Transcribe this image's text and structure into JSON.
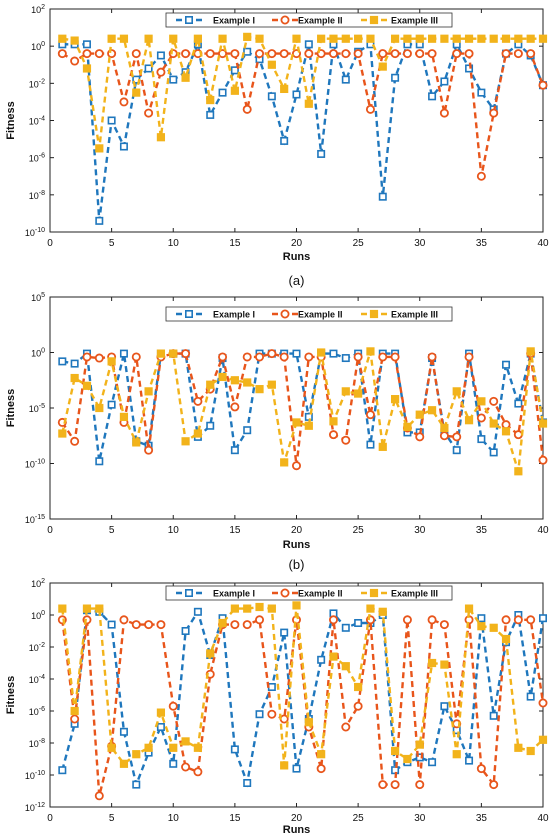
{
  "colors": {
    "series": [
      "#1f77bd",
      "#e8551b",
      "#f2b31b"
    ]
  },
  "chart_data": [
    {
      "type": "line",
      "caption": "(a)",
      "xlabel": "Runs",
      "ylabel": "Fitness",
      "y_scale": "log",
      "xlim": [
        0,
        40
      ],
      "ylim_exp": [
        -10,
        2
      ],
      "xticks": [
        0,
        5,
        10,
        15,
        20,
        25,
        30,
        35,
        40
      ],
      "yticks_exp": [
        -10,
        -8,
        -6,
        -4,
        -2,
        0,
        2
      ],
      "legend_position": "top",
      "x": [
        1,
        2,
        3,
        4,
        5,
        6,
        7,
        8,
        9,
        10,
        11,
        12,
        13,
        14,
        15,
        16,
        17,
        18,
        19,
        20,
        21,
        22,
        23,
        24,
        25,
        26,
        27,
        28,
        29,
        30,
        31,
        32,
        33,
        34,
        35,
        36,
        37,
        38,
        39,
        40
      ],
      "series": [
        {
          "name": "Example I",
          "marker": "square",
          "log10_values": [
            0.1,
            0.1,
            0.1,
            -9.4,
            -4,
            -5.4,
            -1.8,
            -1.2,
            -0.5,
            -1.8,
            -1.4,
            0.1,
            -3.7,
            -2.5,
            -1.3,
            -0.3,
            -0.7,
            -2.7,
            -5.1,
            -2.6,
            0.1,
            -5.8,
            0.1,
            -1.8,
            -0.3,
            0.1,
            -8.1,
            -1.7,
            0.1,
            0.1,
            -2.7,
            -1.9,
            0.1,
            -1.2,
            -2.5,
            -3.4,
            -0.4,
            0.1,
            -0.5,
            -2.1
          ]
        },
        {
          "name": "Example II",
          "marker": "circle",
          "log10_values": [
            -0.4,
            -0.8,
            -0.4,
            -0.4,
            -0.4,
            -3,
            -0.4,
            -3.6,
            -1.4,
            -0.4,
            -0.4,
            -0.4,
            -0.4,
            -0.4,
            -0.4,
            -3.4,
            -0.4,
            -0.4,
            -0.4,
            -0.4,
            -0.4,
            -0.4,
            -0.4,
            -0.4,
            -0.4,
            -3.4,
            -0.4,
            -0.4,
            -0.4,
            -0.4,
            -0.4,
            -3.6,
            -0.4,
            -0.4,
            -7,
            -3.6,
            -0.4,
            -0.4,
            -0.4,
            -2.1
          ]
        },
        {
          "name": "Example III",
          "marker": "filled-square",
          "log10_values": [
            0.4,
            0.3,
            -1.2,
            -5.5,
            0.4,
            0.4,
            -2.5,
            0.4,
            -4.9,
            0.4,
            -1.7,
            0.4,
            -2.9,
            0.4,
            -2.4,
            0.5,
            0.4,
            -1,
            -2.3,
            0.4,
            -3.1,
            0.4,
            0.4,
            0.4,
            0.4,
            0.4,
            -1.1,
            0.4,
            0.4,
            0.4,
            0.4,
            0.4,
            0.4,
            0.4,
            0.4,
            0.4,
            0.4,
            0.4,
            0.4,
            0.4
          ]
        }
      ]
    },
    {
      "type": "line",
      "caption": "(b)",
      "xlabel": "Runs",
      "ylabel": "Fitness",
      "y_scale": "log",
      "xlim": [
        0,
        40
      ],
      "ylim_exp": [
        -15,
        5
      ],
      "xticks": [
        0,
        5,
        10,
        15,
        20,
        25,
        30,
        35,
        40
      ],
      "yticks_exp": [
        -15,
        -10,
        -5,
        0,
        5
      ],
      "legend_position": "top",
      "x": [
        1,
        2,
        3,
        4,
        5,
        6,
        7,
        8,
        9,
        10,
        11,
        12,
        13,
        14,
        15,
        16,
        17,
        18,
        19,
        20,
        21,
        22,
        23,
        24,
        25,
        26,
        27,
        28,
        29,
        30,
        31,
        32,
        33,
        34,
        35,
        36,
        37,
        38,
        39,
        40
      ],
      "series": [
        {
          "name": "Example I",
          "marker": "square",
          "log10_values": [
            -0.8,
            -1,
            -0.1,
            -9.8,
            -4.7,
            -0.1,
            -8,
            -8.4,
            -0.1,
            -0.1,
            -0.1,
            -7.6,
            -6.6,
            -0.5,
            -8.8,
            -7,
            -0.1,
            -0.1,
            -0.1,
            -0.1,
            -5.8,
            -0.1,
            -0.1,
            -0.5,
            -0.1,
            -8.3,
            -0.1,
            -0.1,
            -7.2,
            -7.2,
            -0.5,
            -7.2,
            -8.8,
            -0.1,
            -7.8,
            -9,
            -1.1,
            -4.6,
            -0.1,
            -6.3
          ]
        },
        {
          "name": "Example II",
          "marker": "circle",
          "log10_values": [
            -6.3,
            -8,
            -0.4,
            -0.5,
            -0.4,
            -6.3,
            -0.4,
            -8.8,
            -0.4,
            -0.1,
            -0.1,
            -4.4,
            -3.3,
            -0.4,
            -4.9,
            -0.4,
            -0.4,
            -0.1,
            -0.4,
            -10.2,
            -0.4,
            -0.4,
            -7.4,
            -7.9,
            -0.4,
            -5.6,
            -0.4,
            -0.4,
            -6.8,
            -7.6,
            -0.4,
            -7.5,
            -7.6,
            -0.4,
            -5.9,
            -4.4,
            -6.5,
            -7.4,
            -0.1,
            -9.7
          ]
        },
        {
          "name": "Example III",
          "marker": "filled-square",
          "log10_values": [
            -7.3,
            -2.3,
            -3,
            -5,
            -0.8,
            -5.8,
            -8.1,
            -3.5,
            -0.1,
            -0.1,
            -8,
            -7.3,
            -2.9,
            -2.2,
            -2.5,
            -2.7,
            -3.3,
            -2.9,
            -9.9,
            -6.3,
            -6.6,
            0,
            -6.2,
            -3.5,
            -3.7,
            0.1,
            -8.5,
            -4.2,
            -6.7,
            -5.6,
            -5.2,
            -6.8,
            -3.5,
            -6.1,
            -4.4,
            -6.4,
            -7.1,
            -10.7,
            0.1,
            -6.4
          ]
        }
      ]
    },
    {
      "type": "line",
      "caption": "",
      "xlabel": "Runs",
      "ylabel": "Fitness",
      "y_scale": "log",
      "xlim": [
        0,
        40
      ],
      "ylim_exp": [
        -12,
        2
      ],
      "xticks": [
        0,
        5,
        10,
        15,
        20,
        25,
        30,
        35,
        40
      ],
      "yticks_exp": [
        -12,
        -10,
        -8,
        -6,
        -4,
        -2,
        0,
        2
      ],
      "legend_position": "top",
      "x": [
        1,
        2,
        3,
        4,
        5,
        6,
        7,
        8,
        9,
        10,
        11,
        12,
        13,
        14,
        15,
        16,
        17,
        18,
        19,
        20,
        21,
        22,
        23,
        24,
        25,
        26,
        27,
        28,
        29,
        30,
        31,
        32,
        33,
        34,
        35,
        36,
        37,
        38,
        39,
        40
      ],
      "series": [
        {
          "name": "Example I",
          "marker": "square",
          "log10_values": [
            -9.7,
            -6.8,
            0.3,
            0.2,
            -0.6,
            -7.3,
            -10.6,
            -8.6,
            -7,
            -9.3,
            -1,
            0.2,
            -2.5,
            -0.2,
            -8.4,
            -10.5,
            -6.2,
            -4.5,
            -1.1,
            -9.6,
            -6.5,
            -2.8,
            0.1,
            -0.8,
            -0.5,
            -0.5,
            0,
            -9.7,
            -9.2,
            -8.9,
            -9.2,
            -5.7,
            -7.2,
            -9.1,
            -0.2,
            -6.3,
            -1.7,
            0,
            -5.1,
            -0.2
          ]
        },
        {
          "name": "Example II",
          "marker": "circle",
          "log10_values": [
            -0.3,
            -6.5,
            -0.3,
            -11.3,
            -8.2,
            -0.3,
            -0.6,
            -0.6,
            -0.6,
            -5.7,
            -9.5,
            -9.8,
            -3.7,
            -0.6,
            -0.6,
            -0.6,
            -0.3,
            -6.2,
            -6.5,
            -0.3,
            -7,
            -9.6,
            -0.3,
            -7,
            -5.7,
            -0.3,
            -10.6,
            -10.6,
            -0.3,
            -10.6,
            -0.3,
            -0.6,
            -6.8,
            -0.3,
            -9.6,
            -10.6,
            -0.3,
            -0.3,
            -0.3,
            -5.5
          ]
        },
        {
          "name": "Example III",
          "marker": "filled-square",
          "log10_values": [
            0.4,
            -6,
            0.4,
            0.4,
            -8.3,
            -9.3,
            -8.7,
            -8.3,
            -6.1,
            -8.3,
            -7.9,
            -8.3,
            -2.4,
            -0.5,
            0.4,
            0.4,
            0.5,
            0.4,
            -9.4,
            0.6,
            -6.7,
            -8.7,
            -2.6,
            -3.2,
            -4.5,
            0.4,
            0.2,
            -8.5,
            -9,
            -8.1,
            -3,
            -3.1,
            -8.7,
            0.4,
            -0.7,
            -0.8,
            -1.5,
            -8.3,
            -8.5,
            -7.8
          ]
        }
      ]
    }
  ]
}
